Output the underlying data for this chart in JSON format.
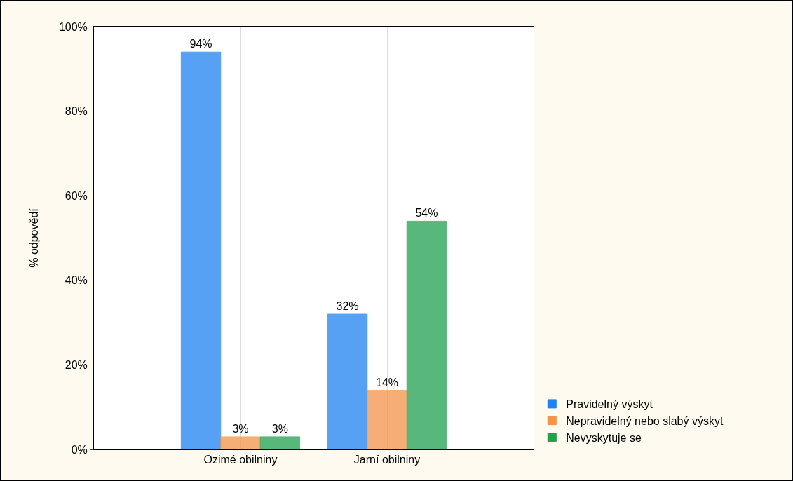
{
  "chart_data": {
    "type": "bar",
    "ylabel": "% odpovědí",
    "categories": [
      "Ozimé obilniny",
      "Jarní obilniny"
    ],
    "series": [
      {
        "name": "Pravidelný výskyt",
        "color": "#1e82f0",
        "values": [
          94,
          32
        ]
      },
      {
        "name": "Nepravidelný nebo slabý výskyt",
        "color": "#f4944a",
        "values": [
          3,
          14
        ]
      },
      {
        "name": "Nevyskytuje se",
        "color": "#21a04e",
        "values": [
          3,
          54
        ]
      }
    ],
    "ylim": [
      0,
      100
    ],
    "yticks": [
      {
        "value": 0,
        "label": "0%"
      },
      {
        "value": 20,
        "label": "20%"
      },
      {
        "value": 40,
        "label": "40%"
      },
      {
        "value": 60,
        "label": "60%"
      },
      {
        "value": 80,
        "label": "80%"
      },
      {
        "value": 100,
        "label": "100%"
      }
    ],
    "value_labels": [
      [
        "94%",
        "32%"
      ],
      [
        "3%",
        "14%"
      ],
      [
        "3%",
        "54%"
      ]
    ],
    "grid": true,
    "legend": "bottom right"
  }
}
